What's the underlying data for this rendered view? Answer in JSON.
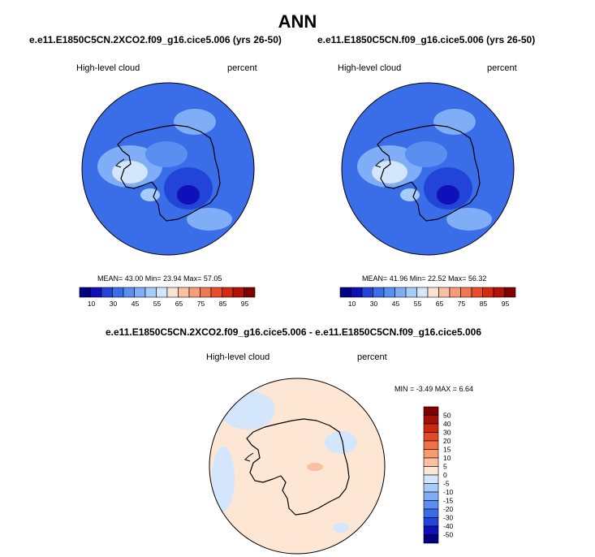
{
  "page": {
    "title": "ANN"
  },
  "panels": [
    {
      "case_title": "e.e11.E1850C5CN.2XCO2.f09_g16.cice5.006 (yrs 26-50)",
      "field": "High-level cloud",
      "units": "percent",
      "stats": "MEAN=  43.00  Min=  23.94  Max=  57.05"
    },
    {
      "case_title": "e.e11.E1850C5CN.f09_g16.cice5.006 (yrs 26-50)",
      "field": "High-level cloud",
      "units": "percent",
      "stats": "MEAN=  41.96  Min=  22.52  Max=  56.32"
    }
  ],
  "diff": {
    "title": "e.e11.E1850C5CN.2XCO2.f09_g16.cice5.006 - e.e11.E1850C5CN.f09_g16.cice5.006",
    "field": "High-level cloud",
    "units": "percent",
    "stats": "MIN =   -3.49 MAX =    6.64"
  },
  "colorbar": {
    "colors": [
      "#000080",
      "#1010b8",
      "#2244d8",
      "#3a6ee8",
      "#5a8ef0",
      "#80aef6",
      "#a8ccfa",
      "#d4e6fc",
      "#fbe3d4",
      "#f9c0a4",
      "#f59c78",
      "#f07850",
      "#e84e2c",
      "#d42a10",
      "#b01406",
      "#800000"
    ],
    "labels": [
      "10",
      "30",
      "45",
      "55",
      "65",
      "75",
      "85",
      "95"
    ]
  },
  "diff_colorbar": {
    "colors": [
      "#000080",
      "#1010b8",
      "#2244d8",
      "#3a6ee8",
      "#5a8ef0",
      "#80aef6",
      "#a8ccfa",
      "#d4e6fc",
      "#fde6d4",
      "#fbc0a0",
      "#f79a70",
      "#f07048",
      "#e44a28",
      "#cc2810",
      "#a01006",
      "#800000"
    ],
    "labels": [
      "50",
      "40",
      "30",
      "20",
      "15",
      "10",
      "5",
      "0",
      "-5",
      "-10",
      "-15",
      "-20",
      "-30",
      "-40",
      "-50"
    ]
  }
}
